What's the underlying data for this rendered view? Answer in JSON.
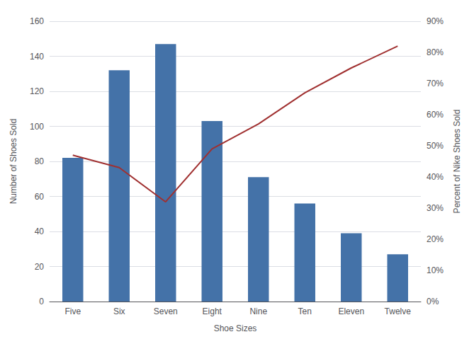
{
  "chart_data": {
    "type": "bar",
    "categories": [
      "Five",
      "Six",
      "Seven",
      "Eight",
      "Nine",
      "Ten",
      "Eleven",
      "Twelve"
    ],
    "xlabel": "Shoe Sizes",
    "ylabel": "Number of Shoes Sold",
    "y2label": "Percent of Nike Shoes Sold",
    "series": [
      {
        "type": "bar",
        "color": "#4472a8",
        "values": [
          82,
          132,
          147,
          103,
          71,
          56,
          39,
          27
        ]
      },
      {
        "type": "line",
        "color": "#a03030",
        "axis": "y2",
        "values": [
          0.47,
          0.43,
          0.32,
          0.49,
          0.57,
          0.67,
          0.75,
          0.82
        ]
      }
    ],
    "ylim": [
      0,
      160
    ],
    "yticks": [
      0,
      20,
      40,
      60,
      80,
      100,
      120,
      140,
      160
    ],
    "y2lim": [
      0.0,
      0.9
    ],
    "y2ticks": [
      {
        "value": 0.0,
        "label": "0%"
      },
      {
        "value": 0.1,
        "label": "10%"
      },
      {
        "value": 0.2,
        "label": "20%"
      },
      {
        "value": 0.3,
        "label": "30%"
      },
      {
        "value": 0.4,
        "label": "40%"
      },
      {
        "value": 0.5,
        "label": "50%"
      },
      {
        "value": 0.6,
        "label": "60%"
      },
      {
        "value": 0.7,
        "label": "70%"
      },
      {
        "value": 0.8,
        "label": "80%"
      },
      {
        "value": 0.9,
        "label": "90%"
      }
    ],
    "grid": true
  }
}
